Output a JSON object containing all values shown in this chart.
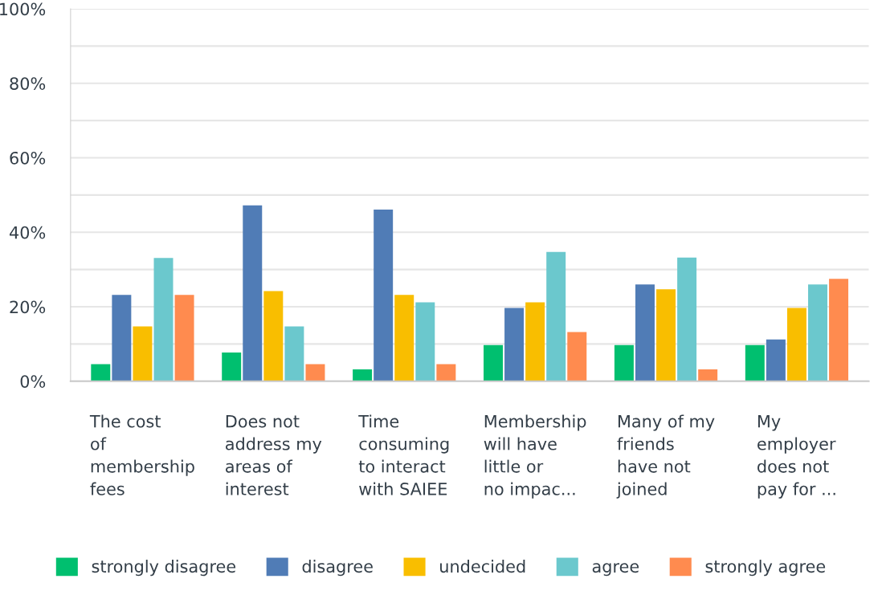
{
  "chart_data": {
    "type": "bar",
    "categories": [
      "The cost\nof\nmembership\nfees",
      "Does not\naddress my\nareas of\ninterest",
      "Time\nconsuming\nto interact\nwith SAIEE",
      "Membership\nwill have\nlittle or\nno impac...",
      "Many of my\nfriends\nhave not\njoined",
      "My\nemployer\ndoes not\npay for ..."
    ],
    "series": [
      {
        "name": "strongly disagree",
        "color": "#00bf6f",
        "values": [
          4.6,
          7.7,
          3.2,
          9.7,
          9.7,
          9.7
        ]
      },
      {
        "name": "disagree",
        "color": "#507cb6",
        "values": [
          23.2,
          47.2,
          46.1,
          19.7,
          26.0,
          11.2
        ]
      },
      {
        "name": "undecided",
        "color": "#f9be00",
        "values": [
          14.7,
          24.2,
          23.2,
          21.2,
          24.7,
          19.7
        ]
      },
      {
        "name": "agree",
        "color": "#6bc8cd",
        "values": [
          33.1,
          14.7,
          21.2,
          34.7,
          33.2,
          26.0
        ]
      },
      {
        "name": "strongly agree",
        "color": "#ff8b4f",
        "values": [
          23.2,
          4.6,
          4.6,
          13.2,
          3.2,
          27.5
        ]
      }
    ],
    "ylim": [
      0,
      100
    ],
    "yticks": [
      {
        "value": 0,
        "label": "0%"
      },
      {
        "value": 10,
        "label": null
      },
      {
        "value": 20,
        "label": "20%"
      },
      {
        "value": 30,
        "label": null
      },
      {
        "value": 40,
        "label": "40%"
      },
      {
        "value": 50,
        "label": null
      },
      {
        "value": 60,
        "label": "60%"
      },
      {
        "value": 70,
        "label": null
      },
      {
        "value": 80,
        "label": "80%"
      },
      {
        "value": 90,
        "label": null
      },
      {
        "value": 100,
        "label": "100%"
      }
    ],
    "grid": "y",
    "legend": "bottom"
  }
}
